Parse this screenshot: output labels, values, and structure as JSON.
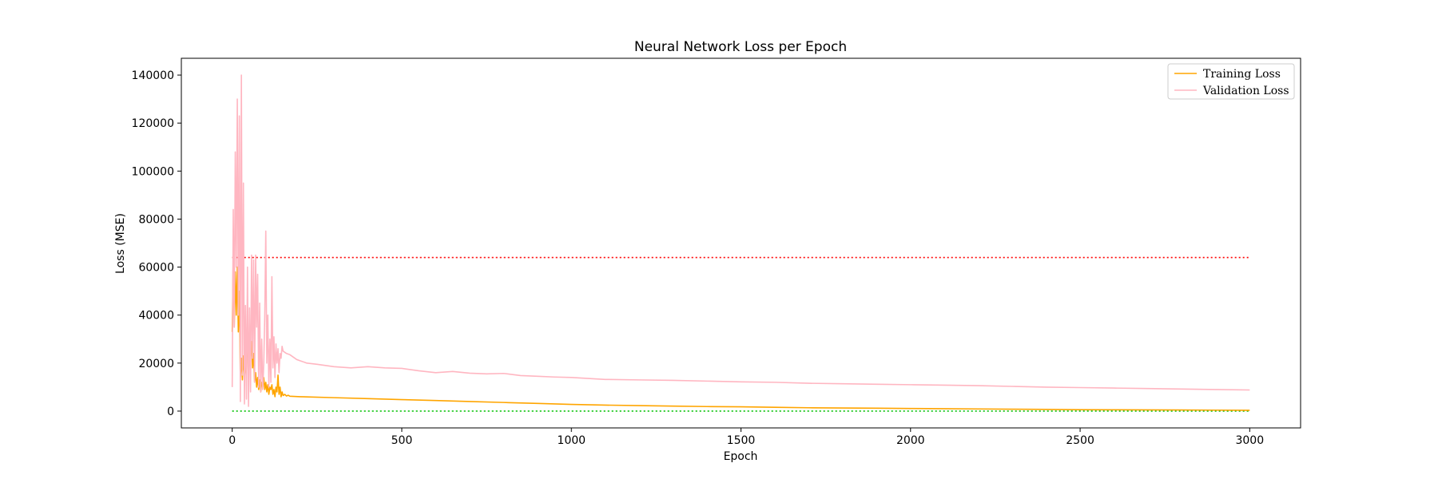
{
  "chart_data": {
    "type": "line",
    "title": "Neural Network Loss per Epoch",
    "xlabel": "Epoch",
    "ylabel": "Loss (MSE)",
    "xlim": [
      -150,
      3150
    ],
    "ylim": [
      -7000,
      147000
    ],
    "xticks": [
      0,
      500,
      1000,
      1500,
      2000,
      2500,
      3000
    ],
    "yticks": [
      0,
      20000,
      40000,
      60000,
      80000,
      100000,
      120000,
      140000
    ],
    "grid": false,
    "legend_position": "top-right",
    "series": [
      {
        "name": "Training Loss",
        "color": "#ffa500",
        "x": [
          0,
          3,
          6,
          9,
          12,
          15,
          18,
          21,
          24,
          27,
          30,
          33,
          36,
          39,
          42,
          45,
          48,
          51,
          54,
          57,
          60,
          63,
          66,
          69,
          72,
          75,
          78,
          81,
          84,
          87,
          90,
          93,
          96,
          99,
          102,
          105,
          108,
          111,
          114,
          117,
          120,
          123,
          126,
          129,
          132,
          135,
          138,
          141,
          144,
          147,
          150,
          155,
          160,
          165,
          170,
          200,
          300,
          400,
          500,
          600,
          700,
          800,
          900,
          1000,
          1100,
          1200,
          1300,
          1400,
          1500,
          1600,
          1700,
          1800,
          1900,
          2000,
          2100,
          2200,
          2300,
          2400,
          2500,
          2600,
          2700,
          2800,
          2900,
          3000
        ],
        "y": [
          33000,
          64000,
          35000,
          58000,
          40000,
          60000,
          33000,
          50000,
          14000,
          22000,
          13000,
          23000,
          15000,
          19000,
          14000,
          32000,
          20000,
          30000,
          22000,
          29000,
          18000,
          24000,
          12000,
          16000,
          10000,
          14000,
          9000,
          13000,
          8000,
          12000,
          10000,
          14000,
          9000,
          12000,
          8000,
          11000,
          7000,
          10000,
          9000,
          11000,
          7000,
          9000,
          6000,
          10000,
          8000,
          15000,
          7000,
          10000,
          6000,
          8000,
          6500,
          7000,
          6300,
          6600,
          6200,
          6000,
          5600,
          5200,
          4800,
          4400,
          4000,
          3600,
          3200,
          2800,
          2500,
          2300,
          2100,
          1900,
          1800,
          1600,
          1400,
          1300,
          1200,
          1100,
          1000,
          900,
          800,
          700,
          600,
          550,
          500,
          450,
          400,
          350
        ]
      },
      {
        "name": "Validation Loss",
        "color": "#ffb6c1",
        "x": [
          0,
          3,
          6,
          9,
          12,
          15,
          18,
          21,
          24,
          27,
          30,
          33,
          36,
          39,
          42,
          45,
          48,
          51,
          54,
          57,
          60,
          63,
          66,
          69,
          72,
          75,
          78,
          81,
          84,
          87,
          90,
          93,
          96,
          99,
          102,
          105,
          108,
          111,
          114,
          117,
          120,
          123,
          126,
          129,
          132,
          135,
          138,
          141,
          144,
          147,
          150,
          160,
          170,
          180,
          190,
          200,
          220,
          250,
          300,
          350,
          400,
          450,
          500,
          550,
          600,
          650,
          700,
          750,
          800,
          850,
          900,
          950,
          1000,
          1100,
          1200,
          1300,
          1400,
          1500,
          1600,
          1700,
          1800,
          1900,
          2000,
          2100,
          2200,
          2300,
          2400,
          2500,
          2600,
          2700,
          2800,
          2900,
          3000
        ],
        "y": [
          10000,
          84000,
          35000,
          108000,
          60000,
          130000,
          40000,
          123000,
          4000,
          140000,
          15000,
          95000,
          3000,
          44000,
          5000,
          60000,
          2000,
          43000,
          8000,
          65000,
          22000,
          63000,
          12000,
          65000,
          35000,
          57000,
          10000,
          45000,
          8000,
          30000,
          9000,
          20000,
          40000,
          75000,
          20000,
          40000,
          10000,
          30000,
          12000,
          56000,
          18000,
          31000,
          14000,
          28000,
          20000,
          26000,
          16000,
          24000,
          22000,
          27000,
          25000,
          24000,
          23500,
          22500,
          21500,
          21000,
          20000,
          19500,
          18500,
          18000,
          18500,
          18000,
          17800,
          16800,
          16000,
          16500,
          15800,
          15500,
          15700,
          14800,
          14500,
          14200,
          14000,
          13200,
          13000,
          12800,
          12500,
          12200,
          12000,
          11600,
          11400,
          11200,
          11000,
          10800,
          10600,
          10300,
          10000,
          9800,
          9600,
          9400,
          9200,
          9000,
          8800
        ]
      }
    ],
    "reference_lines": [
      {
        "y": 64000,
        "color": "#ff0000",
        "style": "dotted",
        "from_x": 0,
        "to_x": 3000
      },
      {
        "y": 0,
        "color": "#00c000",
        "style": "dotted",
        "from_x": 0,
        "to_x": 3000
      }
    ]
  }
}
